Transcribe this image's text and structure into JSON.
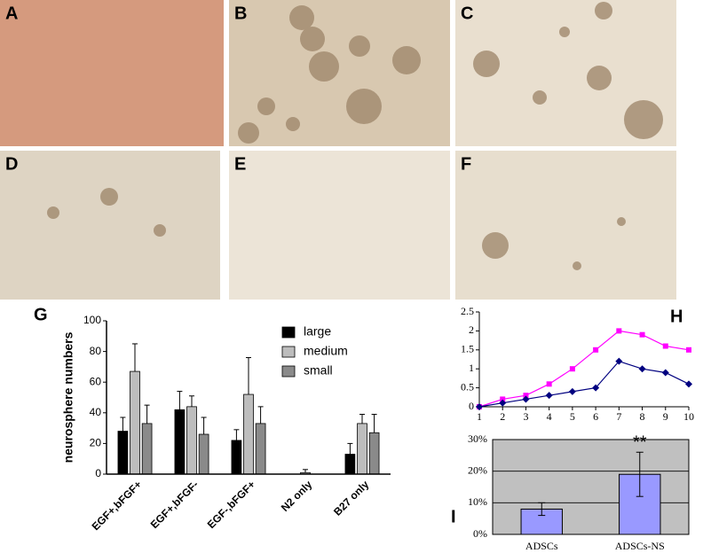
{
  "panels": [
    {
      "label": "A"
    },
    {
      "label": "B"
    },
    {
      "label": "C"
    },
    {
      "label": "D"
    },
    {
      "label": "E"
    },
    {
      "label": "F"
    }
  ],
  "chart_data": [
    {
      "type": "bar",
      "panel": "G",
      "y_label": "neurosphere numbers",
      "categories": [
        "EGF+,bFGF+",
        "EGF+,bFGF-",
        "EGF-,bFGF+",
        "N2 only",
        "B27 only"
      ],
      "series": [
        {
          "name": "large",
          "color": "#000000",
          "values": [
            28,
            42,
            22,
            0,
            13
          ],
          "errors": [
            9,
            12,
            7,
            0,
            7
          ]
        },
        {
          "name": "medium",
          "color": "#bdbdbd",
          "values": [
            67,
            44,
            52,
            1,
            33
          ],
          "errors": [
            18,
            7,
            24,
            2,
            6
          ]
        },
        {
          "name": "small",
          "color": "#8a8a8a",
          "values": [
            33,
            26,
            33,
            0,
            27
          ],
          "errors": [
            12,
            11,
            11,
            0,
            12
          ]
        }
      ],
      "ylim": [
        0,
        100
      ],
      "yticks": [
        0,
        20,
        40,
        60,
        80,
        100
      ],
      "grid": false,
      "legend": "top-right"
    },
    {
      "type": "line",
      "panel": "H",
      "x": [
        1,
        2,
        3,
        4,
        5,
        6,
        7,
        8,
        9,
        10
      ],
      "series": [
        {
          "color": "#ff00ff",
          "marker": "square",
          "values": [
            0,
            0.2,
            0.3,
            0.6,
            1,
            1.5,
            2,
            1.9,
            1.6,
            1.5
          ]
        },
        {
          "color": "#000080",
          "marker": "diamond",
          "values": [
            0,
            0.1,
            0.2,
            0.3,
            0.4,
            0.5,
            1.2,
            1,
            0.9,
            0.6
          ]
        }
      ],
      "xlim": [
        1,
        10
      ],
      "xticks": [
        1,
        2,
        3,
        4,
        5,
        6,
        7,
        8,
        9,
        10
      ],
      "ylim": [
        0,
        2.5
      ],
      "yticks": [
        0,
        0.5,
        1,
        1.5,
        2,
        2.5
      ],
      "grid": false
    },
    {
      "type": "bar",
      "panel": "I",
      "categories": [
        "ADSCs",
        "ADSCs-NS"
      ],
      "values": [
        8,
        19
      ],
      "errors": [
        2,
        7
      ],
      "color": "#9999ff",
      "annotation": "**",
      "ylim": [
        0,
        30
      ],
      "yticks": [
        {
          "value": 0,
          "label": "0%"
        },
        {
          "value": 10,
          "label": "10%"
        },
        {
          "value": 20,
          "label": "20%"
        },
        {
          "value": 30,
          "label": "30%"
        }
      ],
      "grid": true
    }
  ]
}
